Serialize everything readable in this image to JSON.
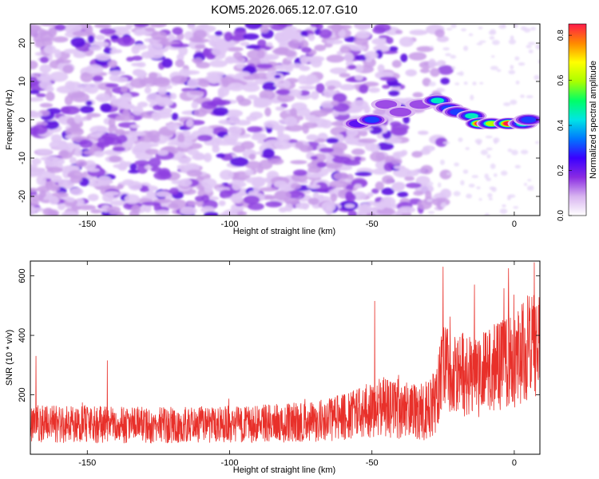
{
  "figure": {
    "title": "KOM5.2026.065.12.07.G10"
  },
  "chart_data": [
    {
      "type": "heatmap",
      "title": "KOM5.2026.065.12.07.G10",
      "xlabel": "Height of straight line (km)",
      "ylabel": "Frequency (Hz)",
      "xlim": [
        -170,
        9
      ],
      "ylim": [
        -25,
        25
      ],
      "xticks": [
        -150,
        -100,
        -50,
        0
      ],
      "xtick_labels": [
        "-150",
        "-100",
        "-50",
        "0"
      ],
      "yticks": [
        20,
        10,
        0,
        -10,
        -20
      ],
      "ytick_labels": [
        "20",
        "10",
        "0",
        "-10",
        "-20"
      ],
      "colorbar": {
        "label": "Normalized spectral amplitude",
        "range": [
          0.0,
          0.85
        ],
        "ticks": [
          0.0,
          0.2,
          0.4,
          0.6,
          0.8
        ],
        "tick_labels": [
          "0.0",
          "0.2",
          "0.4",
          "0.6",
          "0.8"
        ],
        "colormap": "white-violet-blue-cyan-green-yellow-red",
        "stops": [
          "#ffffff",
          "#d8b4f0",
          "#8a2be2",
          "#3b00ff",
          "#0077ff",
          "#00e5e5",
          "#00ff66",
          "#aaff00",
          "#ffff00",
          "#ff8800",
          "#ff1a4a"
        ]
      },
      "noise_region": {
        "x": [
          -170,
          -30
        ],
        "y": [
          -25,
          25
        ],
        "typical_amplitude": [
          0.05,
          0.1
        ]
      },
      "signal_track": [
        {
          "x": -55,
          "y": -1,
          "amplitude": 0.25
        },
        {
          "x": -50,
          "y": 0,
          "amplitude": 0.3
        },
        {
          "x": -45,
          "y": 4,
          "amplitude": 0.2
        },
        {
          "x": -40,
          "y": 2,
          "amplitude": 0.15
        },
        {
          "x": -33,
          "y": 4,
          "amplitude": 0.2
        },
        {
          "x": -27,
          "y": 5,
          "amplitude": 0.45
        },
        {
          "x": -23,
          "y": 3,
          "amplitude": 0.3
        },
        {
          "x": -20,
          "y": 2,
          "amplitude": 0.35
        },
        {
          "x": -15,
          "y": 1,
          "amplitude": 0.45
        },
        {
          "x": -12,
          "y": -1,
          "amplitude": 0.85
        },
        {
          "x": -8,
          "y": -1,
          "amplitude": 0.6
        },
        {
          "x": -2,
          "y": -1,
          "amplitude": 0.85
        },
        {
          "x": 3,
          "y": -1,
          "amplitude": 0.5
        },
        {
          "x": 5,
          "y": 0,
          "amplitude": 0.3
        }
      ]
    },
    {
      "type": "line",
      "xlabel": "Height of straight line (km)",
      "ylabel": "SNR (10 * v/v)",
      "xlim": [
        -170,
        9
      ],
      "ylim": [
        0,
        650
      ],
      "xticks": [
        -150,
        -100,
        -50,
        0
      ],
      "xtick_labels": [
        "-150",
        "-100",
        "-50",
        "0"
      ],
      "yticks": [
        200,
        400,
        600
      ],
      "ytick_labels": [
        "200",
        "400",
        "600"
      ],
      "series": [
        {
          "name": "SNR",
          "color": "#e8302a",
          "x_range": [
            -170,
            9
          ],
          "envelope_km": [
            -170,
            -150,
            -130,
            -110,
            -90,
            -70,
            -60,
            -50,
            -45,
            -40,
            -35,
            -30,
            -28,
            -25,
            -20,
            -15,
            -10,
            -5,
            0,
            5,
            9
          ],
          "envelope_mean": [
            100,
            100,
            98,
            100,
            102,
            110,
            125,
            150,
            160,
            150,
            145,
            150,
            180,
            300,
            280,
            260,
            275,
            300,
            320,
            360,
            380
          ],
          "envelope_spread": [
            60,
            60,
            58,
            58,
            60,
            65,
            75,
            90,
            100,
            95,
            90,
            100,
            110,
            140,
            140,
            130,
            140,
            150,
            160,
            170,
            170
          ],
          "peaks": [
            {
              "x": -168,
              "y": 330
            },
            {
              "x": -143,
              "y": 315
            },
            {
              "x": -49,
              "y": 515
            },
            {
              "x": -25,
              "y": 630
            },
            {
              "x": -2,
              "y": 625
            },
            {
              "x": 7,
              "y": 645
            },
            {
              "x": -14,
              "y": 570
            }
          ]
        }
      ]
    }
  ]
}
